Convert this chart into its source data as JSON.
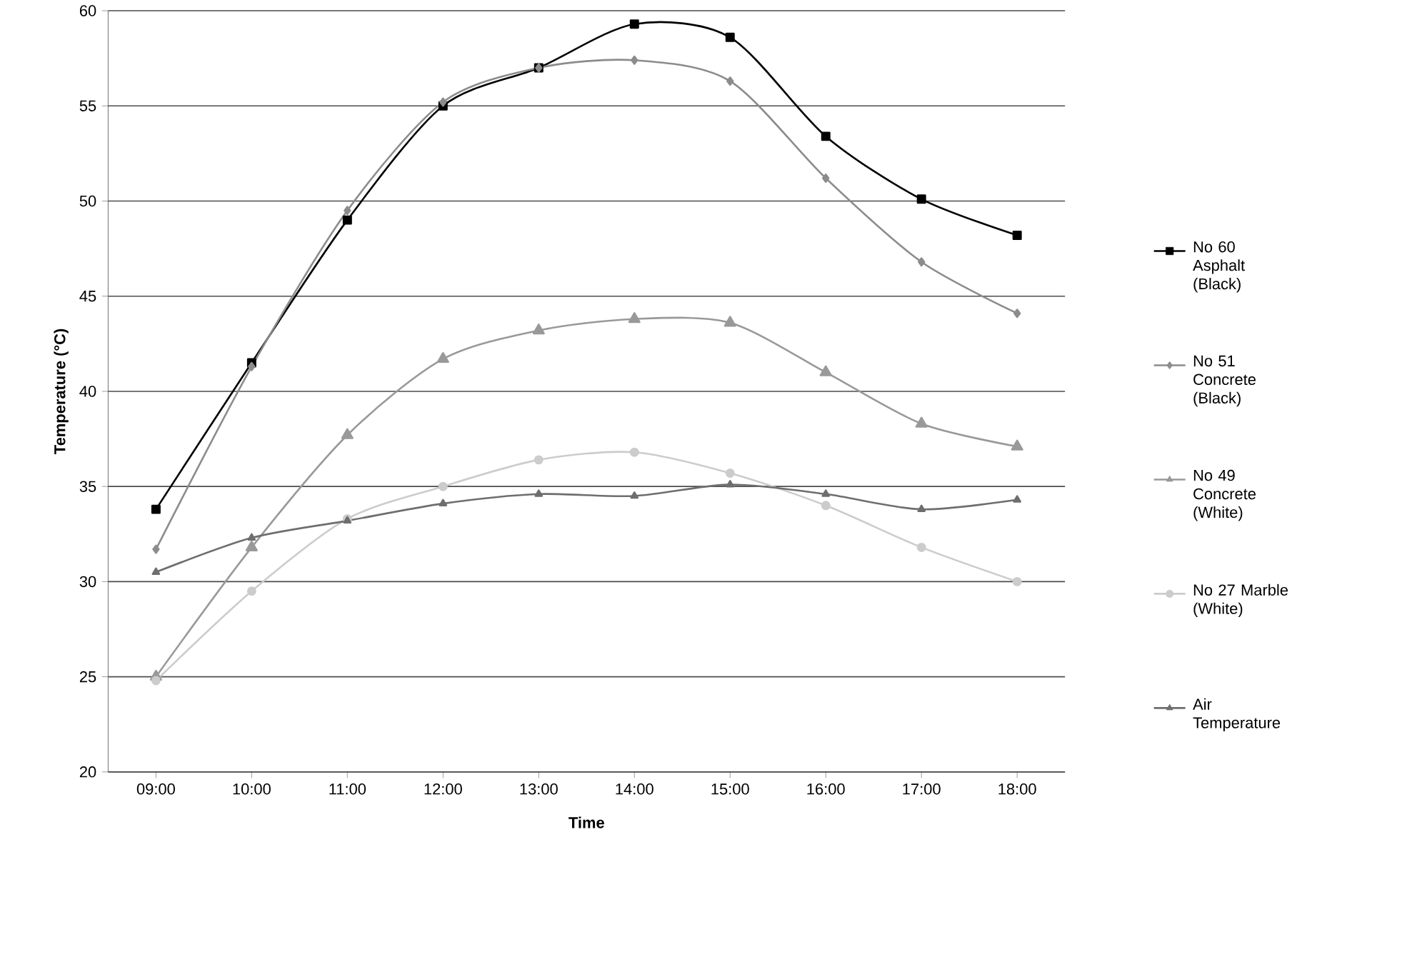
{
  "chart_data": {
    "type": "line",
    "xlabel": "Time",
    "ylabel": "Temperature (°C)",
    "categories": [
      "09:00",
      "10:00",
      "11:00",
      "12:00",
      "13:00",
      "14:00",
      "15:00",
      "16:00",
      "17:00",
      "18:00"
    ],
    "series": [
      {
        "name": "No 60 Asphalt (Black)",
        "color": "#000000",
        "marker": "square",
        "values": [
          33.8,
          41.5,
          49.0,
          55.0,
          57.0,
          59.3,
          58.6,
          53.4,
          50.1,
          48.2
        ]
      },
      {
        "name": "No 51 Concrete (Black)",
        "color": "#8c8c8c",
        "marker": "diamond",
        "values": [
          31.7,
          41.3,
          49.5,
          55.2,
          57.0,
          57.4,
          56.3,
          51.2,
          46.8,
          44.1
        ]
      },
      {
        "name": "No 49 Concrete (White)",
        "color": "#999999",
        "marker": "triangle",
        "values": [
          25.0,
          31.8,
          37.7,
          41.7,
          43.2,
          43.8,
          43.6,
          41.0,
          38.3,
          37.1
        ]
      },
      {
        "name": "No 27 Marble (White)",
        "color": "#cccccc",
        "marker": "circle",
        "values": [
          24.8,
          29.5,
          33.3,
          35.0,
          36.4,
          36.8,
          35.7,
          34.0,
          31.8,
          30.0
        ]
      },
      {
        "name": "Air Temperature",
        "color": "#6e6e6e",
        "marker": "triangle",
        "values": [
          30.5,
          32.3,
          33.2,
          34.1,
          34.6,
          34.5,
          35.1,
          34.6,
          33.8,
          34.3
        ]
      }
    ],
    "ylim": [
      20,
      60
    ],
    "yticks": [
      20,
      25,
      30,
      35,
      40,
      45,
      50,
      55,
      60
    ],
    "grid": "y",
    "legend": "right"
  }
}
